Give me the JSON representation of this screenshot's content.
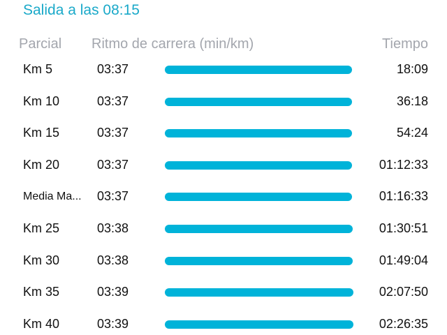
{
  "title": "Salida a las 08:15",
  "headers": {
    "split": "Parcial",
    "pace": "Ritmo de carrera (min/km)",
    "time": "Tiempo"
  },
  "bar_color": "#00b3d9",
  "splits": [
    {
      "label": "Km 5",
      "pace": "03:37",
      "time": "18:09"
    },
    {
      "label": "Km 10",
      "pace": "03:37",
      "time": "36:18"
    },
    {
      "label": "Km 15",
      "pace": "03:37",
      "time": "54:24"
    },
    {
      "label": "Km 20",
      "pace": "03:37",
      "time": "01:12:33"
    },
    {
      "label": "Media Ma...",
      "pace": "03:37",
      "time": "01:16:33"
    },
    {
      "label": "Km 25",
      "pace": "03:38",
      "time": "01:30:51"
    },
    {
      "label": "Km 30",
      "pace": "03:38",
      "time": "01:49:04"
    },
    {
      "label": "Km 35",
      "pace": "03:39",
      "time": "02:07:50"
    },
    {
      "label": "Km 40",
      "pace": "03:39",
      "time": "02:26:35"
    }
  ]
}
